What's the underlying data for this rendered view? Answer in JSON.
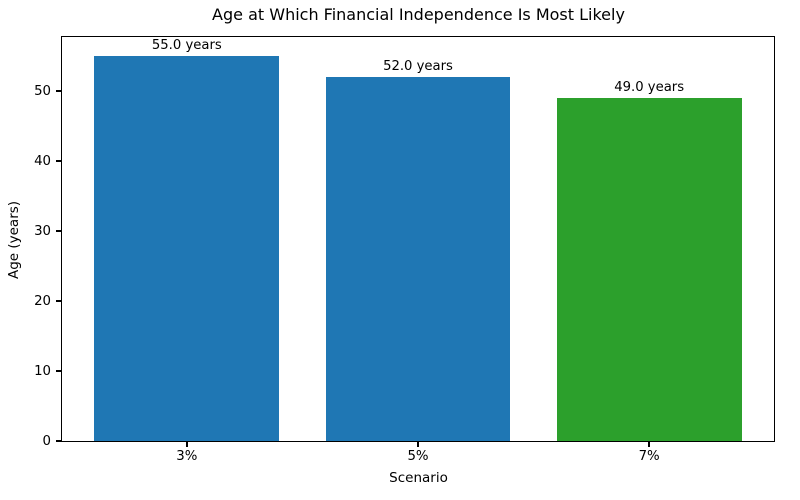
{
  "chart_data": {
    "type": "bar",
    "title": "Age at Which Financial Independence Is Most Likely",
    "xlabel": "Scenario",
    "ylabel": "Age (years)",
    "categories": [
      "3%",
      "5%",
      "7%"
    ],
    "values": [
      55.0,
      52.0,
      49.0
    ],
    "bar_labels": [
      "55.0 years",
      "52.0 years",
      "49.0 years"
    ],
    "bar_colors": [
      "#1f77b4",
      "#1f77b4",
      "#2ca02c"
    ],
    "yticks": [
      0,
      10,
      20,
      30,
      40,
      50
    ],
    "ylim": [
      0,
      57.75
    ],
    "grid": false,
    "legend_position": "none"
  }
}
